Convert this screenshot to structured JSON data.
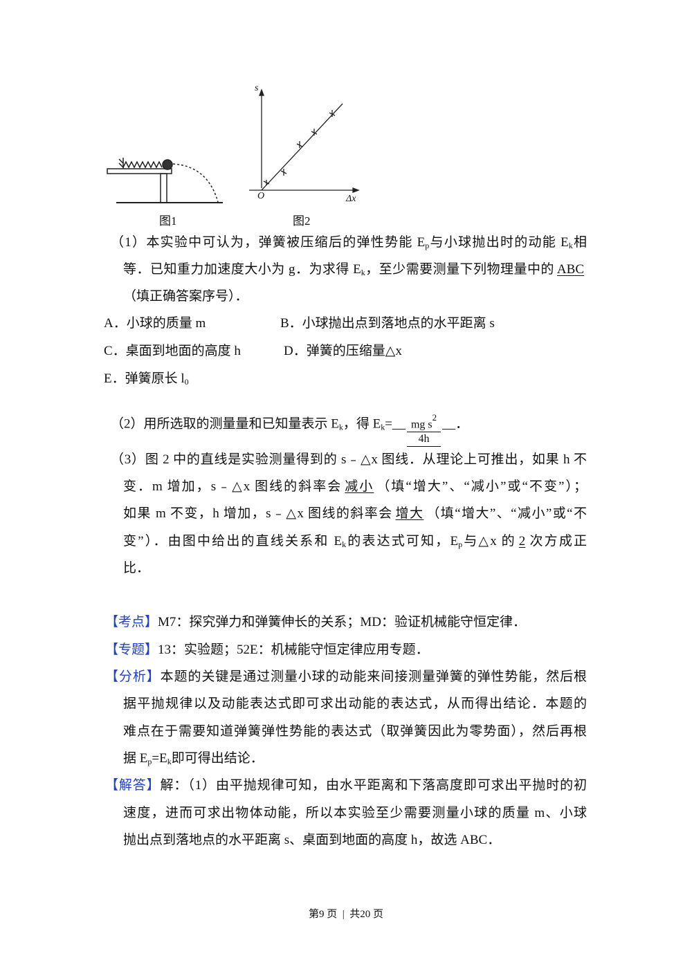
{
  "figures": {
    "fig1_caption": "图1",
    "fig2_caption": "图2",
    "fig2_y_axis": "s",
    "fig2_x_axis": "Δx",
    "fig2_origin": "O"
  },
  "fraction": {
    "num": "mg s",
    "sup": "2",
    "den": "4h"
  },
  "colors": {
    "label_blue": "#1f3fcf"
  },
  "lines": [
    {
      "runs": [
        {
          "t": "（1）本实验中可认为，弹簧被压缩后的弹性势能 E"
        },
        {
          "t": "p",
          "sub": true
        },
        {
          "t": "与小球抛出时的动能 E"
        },
        {
          "t": "k",
          "sub": true
        },
        {
          "t": "相"
        }
      ]
    },
    {
      "runs": [
        {
          "t": "等．已知重力加速度大小为 g．为求得 E"
        },
        {
          "t": "k",
          "sub": true
        },
        {
          "t": "，至少需要测量下列物理量中的"
        },
        {
          "t": "ABC",
          "u": true
        }
      ]
    },
    {
      "runs": [
        {
          "t": "（填正确答案序号）．"
        }
      ]
    },
    {
      "runs": [
        {
          "t": "A．小球的质量 m"
        }
      ]
    },
    {
      "runs": [
        {
          "t": "B．小球抛出点到落地点的水平距离 s"
        }
      ]
    },
    {
      "runs": [
        {
          "t": "C．桌面到地面的高度 h"
        }
      ]
    },
    {
      "runs": [
        {
          "t": "D．弹簧的压缩量△x"
        }
      ]
    },
    {
      "runs": [
        {
          "t": "E．弹簧原长 l"
        },
        {
          "t": "0",
          "sub": true
        }
      ]
    },
    {
      "runs": [
        {
          "t": "（2）用所选取的测量量和已知量表示 E"
        },
        {
          "t": "k",
          "sub": true
        },
        {
          "t": "，得 E"
        },
        {
          "t": "k",
          "sub": true
        },
        {
          "t": "=__"
        },
        {
          "frac": true
        },
        {
          "t": "__．"
        }
      ]
    },
    {
      "runs": [
        {
          "t": "（3）图 2 中的直线是实验测量得到的 s﹣△x 图线．从理论上可推出，如果 h 不"
        }
      ]
    },
    {
      "runs": [
        {
          "t": "变．m 增加，s﹣△x 图线的斜率会"
        },
        {
          "t": "减小",
          "u": true
        },
        {
          "t": "（填“增大”、“减小”或“不变”）；"
        }
      ]
    },
    {
      "runs": [
        {
          "t": "如果 m 不变，h 增加，s﹣△x 图线的斜率会"
        },
        {
          "t": "增大",
          "u": true
        },
        {
          "t": "（填“增大”、“减小”或“不"
        }
      ]
    },
    {
      "runs": [
        {
          "t": "变”）．由图中给出的直线关系和 E"
        },
        {
          "t": "k",
          "sub": true
        },
        {
          "t": "的表达式可知，E"
        },
        {
          "t": "p",
          "sub": true
        },
        {
          "t": "与△x 的"
        },
        {
          "t": "2",
          "u": true
        },
        {
          "t": "次方成正"
        }
      ]
    },
    {
      "runs": [
        {
          "t": "比．"
        }
      ]
    },
    {
      "runs": [
        {
          "t": "【考点】",
          "blue": true
        },
        {
          "t": "M7：探究弹力和弹簧伸长的关系；MD：验证机械能守恒定律．"
        }
      ]
    },
    {
      "runs": [
        {
          "t": "【专题】",
          "blue": true
        },
        {
          "t": "13：实验题；52E：机械能守恒定律应用专题．"
        }
      ]
    },
    {
      "runs": [
        {
          "t": "【分析】",
          "blue": true
        },
        {
          "t": "本题的关键是通过测量小球的动能来间接测量弹簧的弹性势能，然后根"
        }
      ]
    },
    {
      "runs": [
        {
          "t": "据平抛规律以及动能表达式即可求出动能的表达式，从而得出结论．本题的"
        }
      ]
    },
    {
      "runs": [
        {
          "t": "难点在于需要知道弹簧弹性势能的表达式（取弹簧因此为零势面），然后再根"
        }
      ]
    },
    {
      "runs": [
        {
          "t": "据 E"
        },
        {
          "t": "p",
          "sub": true
        },
        {
          "t": "=E"
        },
        {
          "t": "k",
          "sub": true
        },
        {
          "t": "即可得出结论．"
        }
      ]
    },
    {
      "runs": [
        {
          "t": "【解答】",
          "blue": true
        },
        {
          "t": "解：（1）由平抛规律可知，由水平距离和下落高度即可求出平抛时的初"
        }
      ]
    },
    {
      "runs": [
        {
          "t": "速度，进而可求出物体动能，所以本实验至少需要测量小球的质量 m、小球"
        }
      ]
    },
    {
      "runs": [
        {
          "t": "抛出点到落地点的水平距离 s、桌面到地面的高度 h，故选 ABC．"
        }
      ]
    }
  ],
  "footer": {
    "page": "第9 页",
    "sep": "|",
    "total": "共20 页"
  }
}
